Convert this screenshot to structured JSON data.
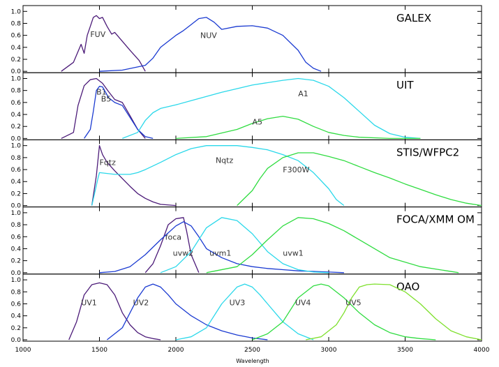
{
  "chart_data": {
    "type": "line",
    "xlabel": "Wavelength",
    "xlim": [
      1000,
      4000
    ],
    "xticks": [
      "1000",
      "1500",
      "2000",
      "2500",
      "3000",
      "3500",
      "4000"
    ],
    "yticks": [
      "0.0",
      "0.2",
      "0.4",
      "0.6",
      "0.8",
      "1.0"
    ],
    "ylim": [
      0,
      1.05
    ],
    "colors": {
      "purple": "#4b1a78",
      "blue": "#1a3ad1",
      "cyan": "#2ad8ea",
      "green": "#2fdc40",
      "lime": "#7ee02c"
    },
    "panels": [
      {
        "title": "GALEX",
        "series": [
          {
            "name": "FUV",
            "color": "purple",
            "x": [
              1250,
              1330,
              1380,
              1400,
              1420,
              1440,
              1460,
              1480,
              1500,
              1520,
              1550,
              1580,
              1600,
              1650,
              1700,
              1760,
              1800
            ],
            "y": [
              0.0,
              0.15,
              0.45,
              0.3,
              0.6,
              0.75,
              0.9,
              0.93,
              0.88,
              0.9,
              0.75,
              0.62,
              0.65,
              0.5,
              0.35,
              0.18,
              0.0
            ],
            "label": {
              "text": "FUV",
              "x": 1440,
              "y": 0.62
            }
          },
          {
            "name": "NUV",
            "color": "blue",
            "x": [
              1500,
              1650,
              1800,
              1850,
              1900,
              2000,
              2050,
              2100,
              2150,
              2200,
              2250,
              2300,
              2400,
              2500,
              2600,
              2700,
              2800,
              2850,
              2900,
              2950
            ],
            "y": [
              0.0,
              0.02,
              0.1,
              0.22,
              0.4,
              0.6,
              0.68,
              0.78,
              0.88,
              0.9,
              0.82,
              0.7,
              0.75,
              0.76,
              0.72,
              0.6,
              0.35,
              0.15,
              0.05,
              0.0
            ],
            "label": {
              "text": "NUV",
              "x": 2160,
              "y": 0.6
            }
          }
        ]
      },
      {
        "title": "UIT",
        "series": [
          {
            "name": "B1",
            "color": "purple",
            "x": [
              1250,
              1330,
              1360,
              1400,
              1440,
              1480,
              1520,
              1560,
              1600,
              1650,
              1700,
              1750,
              1800
            ],
            "y": [
              0.0,
              0.1,
              0.55,
              0.88,
              0.98,
              1.0,
              0.92,
              0.78,
              0.65,
              0.6,
              0.38,
              0.15,
              0.0
            ],
            "label": {
              "text": "B1",
              "x": 1480,
              "y": 0.78
            }
          },
          {
            "name": "B5",
            "color": "blue",
            "x": [
              1400,
              1440,
              1460,
              1480,
              1500,
              1520,
              1560,
              1600,
              1650,
              1700,
              1750,
              1800,
              1850
            ],
            "y": [
              0.0,
              0.15,
              0.45,
              0.8,
              0.87,
              0.86,
              0.68,
              0.6,
              0.55,
              0.35,
              0.15,
              0.03,
              0.0
            ],
            "label": {
              "text": "B5",
              "x": 1510,
              "y": 0.66
            }
          },
          {
            "name": "A1",
            "color": "cyan",
            "x": [
              1650,
              1750,
              1800,
              1850,
              1900,
              2000,
              2100,
              2300,
              2500,
              2700,
              2800,
              2900,
              3000,
              3100,
              3200,
              3300,
              3400,
              3500,
              3600
            ],
            "y": [
              0.0,
              0.1,
              0.3,
              0.43,
              0.5,
              0.56,
              0.63,
              0.77,
              0.89,
              0.97,
              1.0,
              0.97,
              0.87,
              0.68,
              0.45,
              0.22,
              0.08,
              0.02,
              0.0
            ],
            "label": {
              "text": "A1",
              "x": 2800,
              "y": 0.75
            }
          },
          {
            "name": "A5",
            "color": "green",
            "x": [
              2000,
              2200,
              2400,
              2500,
              2600,
              2700,
              2800,
              2900,
              3000,
              3100,
              3200,
              3400,
              3600
            ],
            "y": [
              0.0,
              0.03,
              0.15,
              0.25,
              0.33,
              0.37,
              0.32,
              0.2,
              0.1,
              0.05,
              0.02,
              0.0,
              0.0
            ],
            "label": {
              "text": "A5",
              "x": 2500,
              "y": 0.28
            }
          }
        ]
      },
      {
        "title": "STIS/WFPC2",
        "series": [
          {
            "name": "Fqtz",
            "color": "purple",
            "x": [
              1450,
              1480,
              1500,
              1520,
              1550,
              1600,
              1650,
              1700,
              1750,
              1800,
              1850,
              1900,
              2000
            ],
            "y": [
              0.0,
              0.5,
              1.0,
              0.85,
              0.72,
              0.58,
              0.45,
              0.32,
              0.2,
              0.12,
              0.06,
              0.02,
              0.0
            ],
            "label": {
              "text": "Fqtz",
              "x": 1500,
              "y": 0.72
            }
          },
          {
            "name": "Nqtz",
            "color": "cyan",
            "x": [
              1450,
              1490,
              1500,
              1600,
              1700,
              1750,
              1800,
              1900,
              2000,
              2100,
              2200,
              2300,
              2400,
              2500,
              2600,
              2700,
              2800,
              2900,
              3000,
              3050,
              3100
            ],
            "y": [
              0.0,
              0.45,
              0.55,
              0.52,
              0.52,
              0.55,
              0.6,
              0.72,
              0.85,
              0.95,
              1.0,
              1.0,
              1.0,
              0.97,
              0.93,
              0.85,
              0.75,
              0.55,
              0.28,
              0.1,
              0.0
            ],
            "label": {
              "text": "Nqtz",
              "x": 2260,
              "y": 0.76
            }
          },
          {
            "name": "F300W",
            "color": "green",
            "x": [
              2400,
              2500,
              2550,
              2600,
              2700,
              2800,
              2900,
              3000,
              3100,
              3200,
              3300,
              3400,
              3500,
              3600,
              3700,
              3800,
              3900,
              4000
            ],
            "y": [
              0.0,
              0.25,
              0.45,
              0.62,
              0.8,
              0.88,
              0.88,
              0.82,
              0.75,
              0.65,
              0.55,
              0.46,
              0.36,
              0.27,
              0.18,
              0.1,
              0.04,
              0.0
            ],
            "label": {
              "text": "F300W",
              "x": 2700,
              "y": 0.6
            }
          }
        ]
      },
      {
        "title": "FOCA/XMM OM",
        "series": [
          {
            "name": "foca",
            "color": "purple",
            "x": [
              1800,
              1850,
              1900,
              1950,
              2000,
              2050,
              2070,
              2100,
              2150
            ],
            "y": [
              0.0,
              0.15,
              0.45,
              0.8,
              0.9,
              0.92,
              0.7,
              0.3,
              0.0
            ],
            "label": {
              "text": "foca",
              "x": 1930,
              "y": 0.6
            }
          },
          {
            "name": "uvw2",
            "color": "blue",
            "x": [
              1500,
              1600,
              1700,
              1800,
              1900,
              2000,
              2050,
              2100,
              2150,
              2200,
              2300,
              2400,
              2500,
              2600,
              2700,
              2800,
              3000,
              3100
            ],
            "y": [
              0.0,
              0.02,
              0.1,
              0.3,
              0.55,
              0.78,
              0.85,
              0.78,
              0.6,
              0.4,
              0.25,
              0.15,
              0.1,
              0.07,
              0.05,
              0.03,
              0.01,
              0.0
            ],
            "label": {
              "text": "uvw2",
              "x": 1980,
              "y": 0.33
            }
          },
          {
            "name": "uvm1",
            "color": "cyan",
            "x": [
              1900,
              2000,
              2100,
              2200,
              2300,
              2400,
              2500,
              2600,
              2700,
              2800,
              2900,
              3000
            ],
            "y": [
              0.0,
              0.1,
              0.35,
              0.75,
              0.92,
              0.87,
              0.65,
              0.35,
              0.15,
              0.05,
              0.01,
              0.0
            ],
            "label": {
              "text": "uvm1",
              "x": 2220,
              "y": 0.33
            }
          },
          {
            "name": "uvw1",
            "color": "green",
            "x": [
              2200,
              2400,
              2500,
              2600,
              2700,
              2800,
              2900,
              3000,
              3100,
              3200,
              3300,
              3400,
              3600,
              3850
            ],
            "y": [
              0.0,
              0.1,
              0.3,
              0.55,
              0.78,
              0.92,
              0.9,
              0.82,
              0.7,
              0.55,
              0.4,
              0.25,
              0.1,
              0.0
            ],
            "label": {
              "text": "uvw1",
              "x": 2700,
              "y": 0.33
            }
          }
        ]
      },
      {
        "title": "OAO",
        "series": [
          {
            "name": "UV1",
            "color": "purple",
            "x": [
              1300,
              1350,
              1400,
              1450,
              1500,
              1550,
              1600,
              1650,
              1700,
              1750,
              1800,
              1850,
              1900
            ],
            "y": [
              0.0,
              0.3,
              0.75,
              0.92,
              0.95,
              0.92,
              0.75,
              0.45,
              0.25,
              0.12,
              0.05,
              0.02,
              0.0
            ],
            "label": {
              "text": "UV1",
              "x": 1380,
              "y": 0.62
            }
          },
          {
            "name": "UV2",
            "color": "blue",
            "x": [
              1550,
              1650,
              1700,
              1750,
              1800,
              1850,
              1900,
              1950,
              2000,
              2100,
              2200,
              2300,
              2400,
              2500,
              2600
            ],
            "y": [
              0.0,
              0.2,
              0.45,
              0.7,
              0.88,
              0.93,
              0.88,
              0.75,
              0.6,
              0.4,
              0.25,
              0.15,
              0.08,
              0.03,
              0.0
            ],
            "label": {
              "text": "UV2",
              "x": 1720,
              "y": 0.62
            }
          },
          {
            "name": "UV3",
            "color": "cyan",
            "x": [
              2000,
              2100,
              2200,
              2300,
              2400,
              2450,
              2500,
              2550,
              2600,
              2700,
              2800,
              2900
            ],
            "y": [
              0.0,
              0.05,
              0.2,
              0.6,
              0.88,
              0.93,
              0.88,
              0.75,
              0.6,
              0.3,
              0.1,
              0.0
            ],
            "label": {
              "text": "UV3",
              "x": 2350,
              "y": 0.62
            }
          },
          {
            "name": "UV4",
            "color": "green",
            "x": [
              2500,
              2600,
              2700,
              2800,
              2900,
              2950,
              3000,
              3100,
              3200,
              3300,
              3400,
              3500,
              3600,
              3700
            ],
            "y": [
              0.0,
              0.1,
              0.3,
              0.7,
              0.9,
              0.93,
              0.9,
              0.7,
              0.45,
              0.25,
              0.12,
              0.05,
              0.02,
              0.0
            ],
            "label": {
              "text": "UV4",
              "x": 2780,
              "y": 0.62
            }
          },
          {
            "name": "UV5",
            "color": "lime",
            "x": [
              2850,
              2950,
              3000,
              3050,
              3100,
              3150,
              3200,
              3250,
              3300,
              3400,
              3500,
              3600,
              3700,
              3800,
              3900,
              4000
            ],
            "y": [
              0.0,
              0.05,
              0.15,
              0.25,
              0.45,
              0.7,
              0.88,
              0.92,
              0.93,
              0.92,
              0.8,
              0.6,
              0.35,
              0.15,
              0.05,
              0.0
            ],
            "label": {
              "text": "UV5",
              "x": 3110,
              "y": 0.62
            }
          }
        ]
      }
    ]
  }
}
